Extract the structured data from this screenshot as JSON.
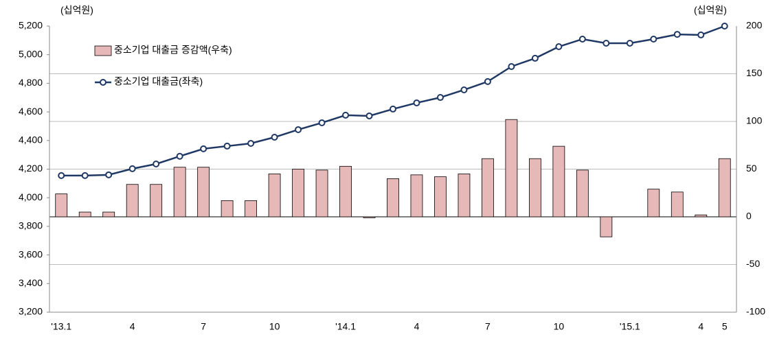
{
  "chart_data": {
    "type": "bar_line",
    "y_unit": "(십억원)",
    "y2_unit": "(십억원)",
    "categories": [
      "'13.1",
      null,
      null,
      "4",
      null,
      null,
      "7",
      null,
      null,
      "10",
      null,
      null,
      "'14.1",
      null,
      null,
      "4",
      null,
      null,
      "7",
      null,
      null,
      "10",
      null,
      null,
      "'15.1",
      null,
      null,
      "4",
      "5"
    ],
    "series": [
      {
        "name": "중소기업 대출금 증감액(우축)",
        "type": "bar",
        "axis": "y2",
        "color": "#e6b8b7",
        "values": [
          24,
          5,
          5,
          34,
          34,
          52,
          52,
          17,
          17,
          45,
          50,
          49,
          53,
          -1,
          40,
          44,
          42,
          45,
          61,
          102,
          61,
          74,
          49,
          -21,
          0,
          29,
          26,
          2,
          61
        ]
      },
      {
        "name": "중소기업 대출금(좌축)",
        "type": "line",
        "axis": "y",
        "color": "#1f3864",
        "values": [
          4155,
          4155,
          4160,
          4203,
          4236,
          4290,
          4342,
          4361,
          4380,
          4423,
          4476,
          4524,
          4577,
          4572,
          4620,
          4663,
          4701,
          4754,
          4812,
          4917,
          4975,
          5056,
          5109,
          5080,
          5080,
          5109,
          5142,
          5138,
          5200
        ]
      }
    ],
    "ylim": [
      3200,
      5200
    ],
    "yticks": [
      {
        "value": 3200,
        "label": "3,200"
      },
      {
        "value": 3400,
        "label": "3,400"
      },
      {
        "value": 3600,
        "label": "3,600"
      },
      {
        "value": 3800,
        "label": "3,800"
      },
      {
        "value": 4000,
        "label": "4,000"
      },
      {
        "value": 4200,
        "label": "4,200"
      },
      {
        "value": 4400,
        "label": "4,400"
      },
      {
        "value": 4600,
        "label": "4,600"
      },
      {
        "value": 4800,
        "label": "4,800"
      },
      {
        "value": 5000,
        "label": "5,000"
      },
      {
        "value": 5200,
        "label": "5,200"
      }
    ],
    "y2lim": [
      -100,
      200
    ],
    "y2ticks": [
      -100,
      -50,
      0,
      50,
      100,
      150,
      200
    ],
    "grid": true,
    "legend": "upper left"
  }
}
